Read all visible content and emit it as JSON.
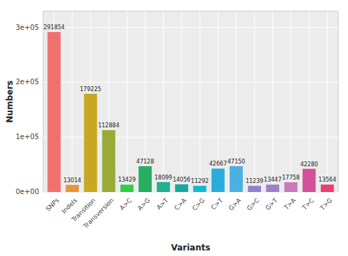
{
  "chart_data": {
    "type": "bar",
    "categories": [
      "SNPs",
      "Indels",
      "Transition",
      "Transversion",
      "A>C",
      "A>G",
      "A>T",
      "C>A",
      "C>G",
      "C>T",
      "G>A",
      "G>C",
      "G>T",
      "T>A",
      "T>C",
      "T>G"
    ],
    "values": [
      291854,
      13014,
      179225,
      112884,
      13429,
      47128,
      18099,
      14056,
      11292,
      42667,
      47150,
      11239,
      13447,
      17758,
      42280,
      13564
    ],
    "colors": [
      "#f07070",
      "#e8943a",
      "#c8a820",
      "#9aaa38",
      "#33cc44",
      "#27ae60",
      "#20b090",
      "#18a8a0",
      "#18b8cc",
      "#2aacdc",
      "#4ab0e0",
      "#9080cc",
      "#9c7fc4",
      "#c87ab8",
      "#d45098",
      "#e84070"
    ],
    "xlabel": "Variants",
    "ylabel": "Numbers",
    "ylim": [
      0,
      330000
    ],
    "yticks": [
      {
        "value": 0,
        "label": "0e+00"
      },
      {
        "value": 100000,
        "label": "1e+05"
      },
      {
        "value": 200000,
        "label": "2e+05"
      },
      {
        "value": 300000,
        "label": "3e+05"
      }
    ],
    "grid": true,
    "data_labels": true
  }
}
